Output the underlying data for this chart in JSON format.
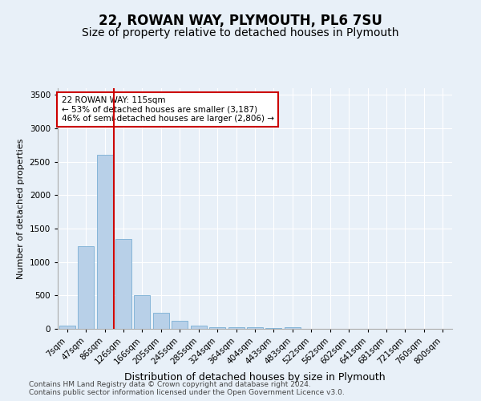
{
  "title1": "22, ROWAN WAY, PLYMOUTH, PL6 7SU",
  "title2": "Size of property relative to detached houses in Plymouth",
  "xlabel": "Distribution of detached houses by size in Plymouth",
  "ylabel": "Number of detached properties",
  "categories": [
    "7sqm",
    "47sqm",
    "86sqm",
    "126sqm",
    "166sqm",
    "205sqm",
    "245sqm",
    "285sqm",
    "324sqm",
    "364sqm",
    "404sqm",
    "443sqm",
    "483sqm",
    "522sqm",
    "562sqm",
    "602sqm",
    "641sqm",
    "681sqm",
    "721sqm",
    "760sqm",
    "800sqm"
  ],
  "values": [
    50,
    1240,
    2600,
    1340,
    500,
    235,
    120,
    50,
    30,
    20,
    20,
    15,
    20,
    5,
    5,
    5,
    5,
    5,
    5,
    5,
    5
  ],
  "bar_color": "#b8d0e8",
  "bar_edge_color": "#7aafd4",
  "vline_color": "#cc0000",
  "annotation_text": "22 ROWAN WAY: 115sqm\n← 53% of detached houses are smaller (3,187)\n46% of semi-detached houses are larger (2,806) →",
  "annotation_box_color": "#ffffff",
  "annotation_box_edge": "#cc0000",
  "ylim": [
    0,
    3600
  ],
  "yticks": [
    0,
    500,
    1000,
    1500,
    2000,
    2500,
    3000,
    3500
  ],
  "background_color": "#e8f0f8",
  "plot_bg_color": "#e8f0f8",
  "footer1": "Contains HM Land Registry data © Crown copyright and database right 2024.",
  "footer2": "Contains public sector information licensed under the Open Government Licence v3.0.",
  "title1_fontsize": 12,
  "title2_fontsize": 10,
  "xlabel_fontsize": 9,
  "ylabel_fontsize": 8,
  "tick_fontsize": 7.5,
  "footer_fontsize": 6.5,
  "vline_pos": 2.5
}
